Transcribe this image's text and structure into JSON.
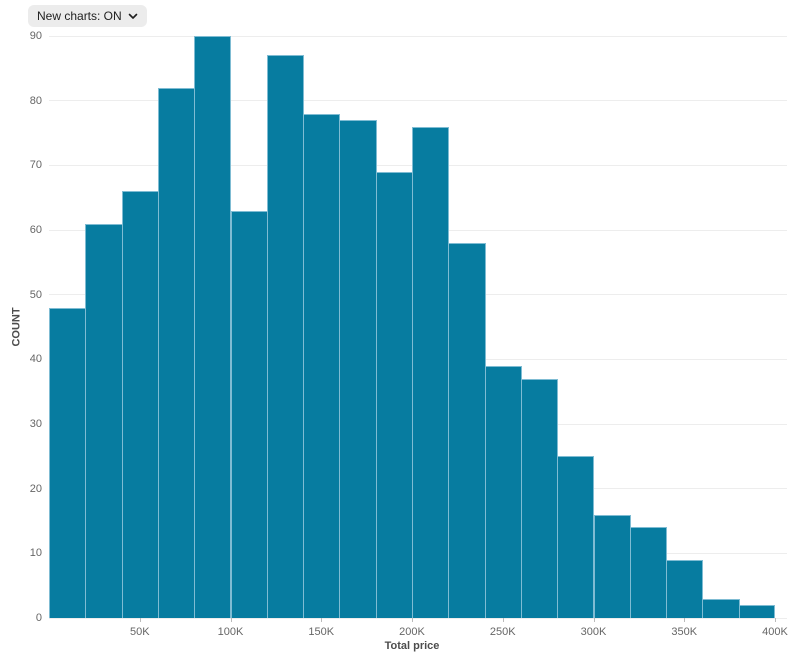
{
  "toolbar": {
    "new_charts_dropdown": {
      "label": "New charts: ON",
      "icon": "chevron-down-icon"
    }
  },
  "chart_data": {
    "type": "bar",
    "subtype": "histogram",
    "title": "",
    "xlabel": "Total price",
    "ylabel": "COUNT",
    "bin_start": 0,
    "bin_width": 20000,
    "categories": [
      "0-20K",
      "20-40K",
      "40-60K",
      "60-80K",
      "80-100K",
      "100-120K",
      "120-140K",
      "140-160K",
      "160-180K",
      "180-200K",
      "200-220K",
      "220-240K",
      "240-260K",
      "260-280K",
      "280-300K",
      "300-320K",
      "320-340K",
      "340-360K",
      "360-380K",
      "380-400K"
    ],
    "values": [
      48,
      61,
      66,
      82,
      90,
      63,
      87,
      78,
      77,
      69,
      76,
      58,
      39,
      37,
      25,
      16,
      14,
      9,
      3,
      2
    ],
    "xlim": [
      0,
      400000
    ],
    "ylim": [
      0,
      90
    ],
    "x_ticks": [
      {
        "value": 50000,
        "label": "50K"
      },
      {
        "value": 100000,
        "label": "100K"
      },
      {
        "value": 150000,
        "label": "150K"
      },
      {
        "value": 200000,
        "label": "200K"
      },
      {
        "value": 250000,
        "label": "250K"
      },
      {
        "value": 300000,
        "label": "300K"
      },
      {
        "value": 350000,
        "label": "350K"
      },
      {
        "value": 400000,
        "label": "400K"
      }
    ],
    "y_ticks": [
      {
        "value": 0,
        "label": "0"
      },
      {
        "value": 10,
        "label": "10"
      },
      {
        "value": 20,
        "label": "20"
      },
      {
        "value": 30,
        "label": "30"
      },
      {
        "value": 40,
        "label": "40"
      },
      {
        "value": 50,
        "label": "50"
      },
      {
        "value": 60,
        "label": "60"
      },
      {
        "value": 70,
        "label": "70"
      },
      {
        "value": 80,
        "label": "80"
      },
      {
        "value": 90,
        "label": "90"
      }
    ],
    "grid": "horizontal",
    "legend": "none",
    "colors": {
      "bar_fill": "#077ca0",
      "bar_stroke": "#7fbcd3",
      "gridline": "#ededed",
      "tick_text": "#666666",
      "axis_title_text": "#4d4d4d",
      "tick_mark": "#bbbbbb",
      "dropdown_bg": "#ececec",
      "dropdown_text": "#1f1f1f"
    }
  }
}
